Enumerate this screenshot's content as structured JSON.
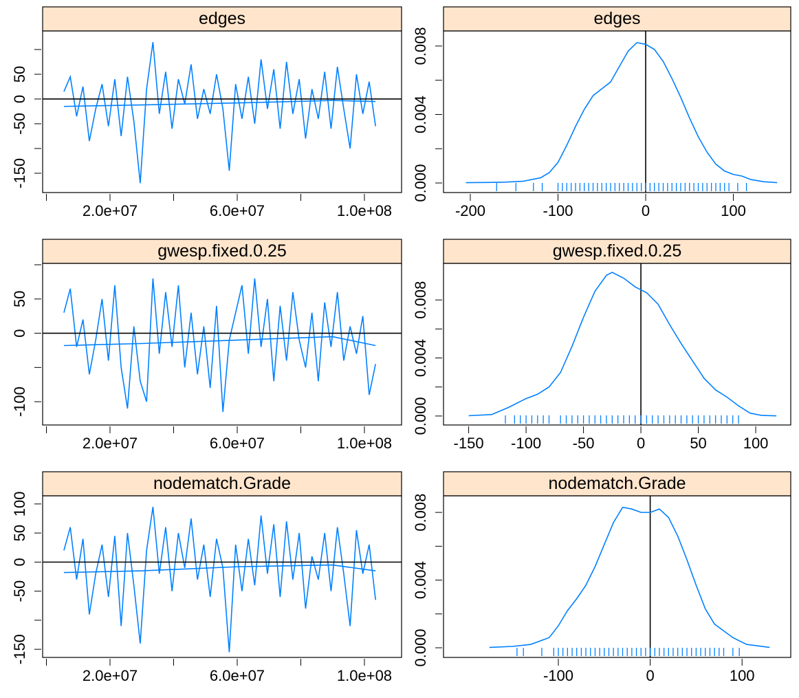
{
  "chart_data": [
    {
      "type": "trace",
      "title": "edges",
      "color": "#0080ff",
      "x": [
        5500000,
        7500000,
        9500000,
        11500000,
        13500000,
        15500000,
        17500000,
        19500000,
        21500000,
        23500000,
        25500000,
        27500000,
        29500000,
        31500000,
        33500000,
        35500000,
        37500000,
        39500000,
        41500000,
        43500000,
        45500000,
        47500000,
        49500000,
        51500000,
        53500000,
        55500000,
        57500000,
        59500000,
        61500000,
        63500000,
        65500000,
        67500000,
        69500000,
        71500000,
        73500000,
        75500000,
        77500000,
        79500000,
        81500000,
        83500000,
        85500000,
        87500000,
        89500000,
        91500000,
        93500000,
        95500000,
        97500000,
        99500000,
        101500000,
        103500000
      ],
      "values": [
        15,
        45,
        -35,
        25,
        -85,
        -20,
        30,
        -55,
        40,
        -75,
        45,
        -45,
        -170,
        20,
        115,
        -30,
        55,
        -60,
        40,
        -10,
        70,
        -40,
        20,
        -30,
        50,
        -20,
        -145,
        30,
        -40,
        45,
        -50,
        80,
        -20,
        60,
        -60,
        75,
        -30,
        40,
        -80,
        20,
        -40,
        55,
        -60,
        65,
        -20,
        -100,
        50,
        -30,
        35,
        -55
      ],
      "trend": {
        "x": [
          5500000,
          30000000,
          60000000,
          90000000,
          103500000
        ],
        "values": [
          -15,
          -12,
          -8,
          -3,
          -5
        ]
      },
      "refline": 0,
      "xlim": [
        -1190000,
        111680000
      ],
      "ylim": [
        -189,
        137.5
      ],
      "xticks": [
        {
          "value": 20000000,
          "label": "2.0e+07"
        },
        {
          "value": 60000000,
          "label": "6.0e+07"
        },
        {
          "value": 100000000,
          "label": "1.0e+08"
        }
      ],
      "xticks_minor": [
        0,
        40000000,
        80000000
      ],
      "yticks": [
        -150,
        -50,
        0,
        50
      ],
      "yticks_minor": [
        -100,
        100
      ]
    },
    {
      "type": "density",
      "title": "edges",
      "color": "#0080ff",
      "x": [
        -205,
        -180,
        -160,
        -140,
        -120,
        -110,
        -100,
        -90,
        -80,
        -70,
        -60,
        -50,
        -40,
        -30,
        -20,
        -10,
        0,
        10,
        20,
        30,
        40,
        50,
        60,
        70,
        80,
        90,
        100,
        110,
        120,
        135,
        150
      ],
      "values": [
        2e-05,
        3e-05,
        5e-05,
        0.0001,
        0.0003,
        0.0006,
        0.0012,
        0.0022,
        0.0033,
        0.0043,
        0.0051,
        0.0055,
        0.0059,
        0.0068,
        0.0077,
        0.0082,
        0.0081,
        0.0078,
        0.0071,
        0.0061,
        0.005,
        0.0038,
        0.0027,
        0.0018,
        0.0011,
        0.0007,
        0.0005,
        0.0004,
        0.0002,
        7e-05,
        2e-05
      ],
      "rug": [
        -170,
        -148,
        -128,
        -118,
        -100,
        -95,
        -90,
        -85,
        -80,
        -75,
        -70,
        -65,
        -60,
        -55,
        -50,
        -45,
        -40,
        -35,
        -30,
        -25,
        -20,
        -15,
        -10,
        -5,
        0,
        5,
        10,
        15,
        20,
        25,
        30,
        35,
        40,
        45,
        50,
        55,
        60,
        65,
        70,
        75,
        80,
        85,
        90,
        95,
        105,
        115
      ],
      "refline": 0,
      "xlim": [
        -230.6,
        165.5
      ],
      "ylim": [
        -0.00056,
        0.00888
      ],
      "xticks": [
        -200,
        -100,
        0,
        100
      ],
      "yticks": [
        {
          "value": 0,
          "label": "0.000"
        },
        0.004,
        0.008
      ],
      "yticks_minor": [
        0.002,
        0.006
      ]
    },
    {
      "type": "trace",
      "title": "gwesp.fixed.0.25",
      "color": "#0080ff",
      "x": [
        5500000,
        7500000,
        9500000,
        11500000,
        13500000,
        15500000,
        17500000,
        19500000,
        21500000,
        23500000,
        25500000,
        27500000,
        29500000,
        31500000,
        33500000,
        35500000,
        37500000,
        39500000,
        41500000,
        43500000,
        45500000,
        47500000,
        49500000,
        51500000,
        53500000,
        55500000,
        57500000,
        59500000,
        61500000,
        63500000,
        65500000,
        67500000,
        69500000,
        71500000,
        73500000,
        75500000,
        77500000,
        79500000,
        81500000,
        83500000,
        85500000,
        87500000,
        89500000,
        91500000,
        93500000,
        95500000,
        97500000,
        99500000,
        101500000,
        103500000
      ],
      "values": [
        30,
        65,
        -20,
        20,
        -60,
        -10,
        50,
        -40,
        70,
        -50,
        -110,
        10,
        -70,
        -100,
        80,
        -30,
        60,
        -20,
        70,
        -50,
        30,
        -60,
        10,
        -80,
        40,
        -115,
        -10,
        30,
        70,
        -30,
        80,
        -20,
        50,
        -70,
        40,
        -40,
        60,
        -10,
        -50,
        30,
        -70,
        45,
        -20,
        60,
        -40,
        10,
        -30,
        25,
        -90,
        -45
      ],
      "trend": {
        "x": [
          5500000,
          30000000,
          60000000,
          90000000,
          103500000
        ],
        "values": [
          -18,
          -15,
          -10,
          -5,
          -18
        ]
      },
      "refline": 0,
      "xlim": [
        -1190000,
        111680000
      ],
      "ylim": [
        -134,
        102
      ],
      "xticks": [
        {
          "value": 20000000,
          "label": "2.0e+07"
        },
        {
          "value": 60000000,
          "label": "6.0e+07"
        },
        {
          "value": 100000000,
          "label": "1.0e+08"
        }
      ],
      "xticks_minor": [
        0,
        40000000,
        80000000
      ],
      "yticks": [
        -100,
        0,
        50
      ],
      "yticks_minor": [
        -50,
        100
      ]
    },
    {
      "type": "density",
      "title": "gwesp.fixed.0.25",
      "color": "#0080ff",
      "x": [
        -150,
        -130,
        -115,
        -100,
        -90,
        -80,
        -70,
        -60,
        -50,
        -40,
        -30,
        -25,
        -15,
        -5,
        5,
        15,
        25,
        35,
        45,
        55,
        65,
        75,
        85,
        95,
        105,
        118
      ],
      "values": [
        2e-05,
        0.0001,
        0.0006,
        0.0012,
        0.0015,
        0.002,
        0.003,
        0.0048,
        0.0068,
        0.0086,
        0.0097,
        0.0099,
        0.0095,
        0.0089,
        0.0085,
        0.0077,
        0.0063,
        0.005,
        0.0038,
        0.0026,
        0.0018,
        0.0013,
        0.0007,
        0.0002,
        4e-05,
        1e-05
      ],
      "rug": [
        -118,
        -110,
        -105,
        -100,
        -95,
        -90,
        -85,
        -80,
        -70,
        -65,
        -60,
        -55,
        -50,
        -45,
        -40,
        -35,
        -30,
        -25,
        -20,
        -15,
        -10,
        -5,
        0,
        5,
        10,
        15,
        20,
        25,
        30,
        35,
        40,
        45,
        50,
        55,
        60,
        65,
        70,
        75,
        80,
        85
      ],
      "refline": 0,
      "xlim": [
        -171.9,
        130.5
      ],
      "ylim": [
        -0.00062,
        0.01052
      ],
      "xticks": [
        -150,
        -100,
        -50,
        0,
        50,
        100
      ],
      "yticks": [
        {
          "value": 0,
          "label": "0.000"
        },
        0.004,
        0.008
      ],
      "yticks_minor": [
        0.002,
        0.006
      ]
    },
    {
      "type": "trace",
      "title": "nodematch.Grade",
      "color": "#0080ff",
      "x": [
        5500000,
        7500000,
        9500000,
        11500000,
        13500000,
        15500000,
        17500000,
        19500000,
        21500000,
        23500000,
        25500000,
        27500000,
        29500000,
        31500000,
        33500000,
        35500000,
        37500000,
        39500000,
        41500000,
        43500000,
        45500000,
        47500000,
        49500000,
        51500000,
        53500000,
        55500000,
        57500000,
        59500000,
        61500000,
        63500000,
        65500000,
        67500000,
        69500000,
        71500000,
        73500000,
        75500000,
        77500000,
        79500000,
        81500000,
        83500000,
        85500000,
        87500000,
        89500000,
        91500000,
        93500000,
        95500000,
        97500000,
        99500000,
        101500000,
        103500000
      ],
      "values": [
        20,
        60,
        -30,
        40,
        -90,
        -20,
        30,
        -60,
        45,
        -110,
        50,
        -40,
        -140,
        20,
        95,
        -20,
        60,
        -50,
        50,
        -10,
        75,
        -30,
        30,
        -60,
        40,
        -10,
        -155,
        30,
        -50,
        40,
        -40,
        80,
        -20,
        65,
        -60,
        70,
        -30,
        50,
        -80,
        10,
        -30,
        50,
        -50,
        60,
        -20,
        -110,
        55,
        -20,
        30,
        -65
      ],
      "trend": {
        "x": [
          5500000,
          30000000,
          60000000,
          90000000,
          103500000
        ],
        "values": [
          -18,
          -15,
          -8,
          -5,
          -15
        ]
      },
      "refline": 0,
      "xlim": [
        -1190000,
        111680000
      ],
      "ylim": [
        -164,
        114
      ],
      "xticks": [
        {
          "value": 20000000,
          "label": "2.0e+07"
        },
        {
          "value": 60000000,
          "label": "6.0e+07"
        },
        {
          "value": 100000000,
          "label": "1.0e+08"
        }
      ],
      "xticks_minor": [
        0,
        40000000,
        80000000
      ],
      "yticks": [
        -150,
        -50,
        0,
        50,
        100
      ],
      "yticks_minor": [
        -100
      ]
    },
    {
      "type": "density",
      "title": "nodematch.Grade",
      "color": "#0080ff",
      "x": [
        -175,
        -150,
        -130,
        -110,
        -100,
        -90,
        -80,
        -70,
        -60,
        -50,
        -40,
        -30,
        -20,
        -10,
        0,
        10,
        20,
        30,
        40,
        50,
        60,
        70,
        80,
        90,
        105,
        130
      ],
      "values": [
        2e-05,
        8e-05,
        0.0002,
        0.0006,
        0.0013,
        0.0022,
        0.0029,
        0.0037,
        0.0048,
        0.0061,
        0.0074,
        0.0083,
        0.0082,
        0.008,
        0.008,
        0.0082,
        0.0077,
        0.0066,
        0.0052,
        0.0037,
        0.0023,
        0.0014,
        0.001,
        0.0006,
        0.0002,
        2e-05
      ],
      "rug": [
        -145,
        -138,
        -118,
        -105,
        -100,
        -95,
        -90,
        -85,
        -80,
        -75,
        -70,
        -65,
        -60,
        -55,
        -50,
        -45,
        -40,
        -35,
        -30,
        -25,
        -20,
        -15,
        -10,
        -5,
        0,
        5,
        10,
        15,
        20,
        25,
        30,
        35,
        40,
        45,
        50,
        55,
        60,
        65,
        70,
        75,
        80,
        90,
        97
      ],
      "refline": 0,
      "xlim": [
        -225,
        153
      ],
      "ylim": [
        -0.00057,
        0.00898
      ],
      "xticks": [
        -100,
        0,
        100
      ],
      "yticks": [
        {
          "value": 0,
          "label": "0.000"
        },
        0.004,
        0.008
      ],
      "yticks_minor": [
        0.002,
        0.006
      ]
    }
  ]
}
